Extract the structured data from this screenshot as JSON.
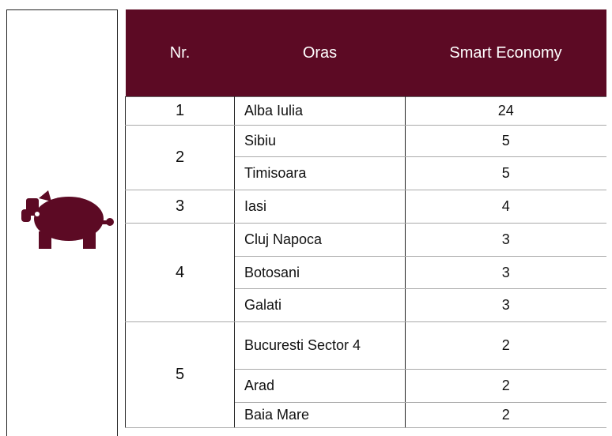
{
  "table": {
    "header": [
      "Nr.",
      "Oras",
      "Smart Economy"
    ],
    "groups": [
      {
        "rank": "1",
        "rows": [
          {
            "city": "Alba Iulia",
            "score": 24
          }
        ]
      },
      {
        "rank": "2",
        "rows": [
          {
            "city": "Sibiu",
            "score": 5
          },
          {
            "city": "Timisoara",
            "score": 5
          }
        ]
      },
      {
        "rank": "3",
        "rows": [
          {
            "city": "Iasi",
            "score": 4
          }
        ]
      },
      {
        "rank": "4",
        "rows": [
          {
            "city": "Cluj Napoca",
            "score": 3
          },
          {
            "city": "Botosani",
            "score": 3
          },
          {
            "city": "Galati",
            "score": 3
          }
        ]
      },
      {
        "rank": "5",
        "rows": [
          {
            "city": "Bucuresti Sector 4",
            "score": 2
          },
          {
            "city": "Arad",
            "score": 2
          },
          {
            "city": "Baia Mare",
            "score": 2
          }
        ]
      }
    ]
  }
}
